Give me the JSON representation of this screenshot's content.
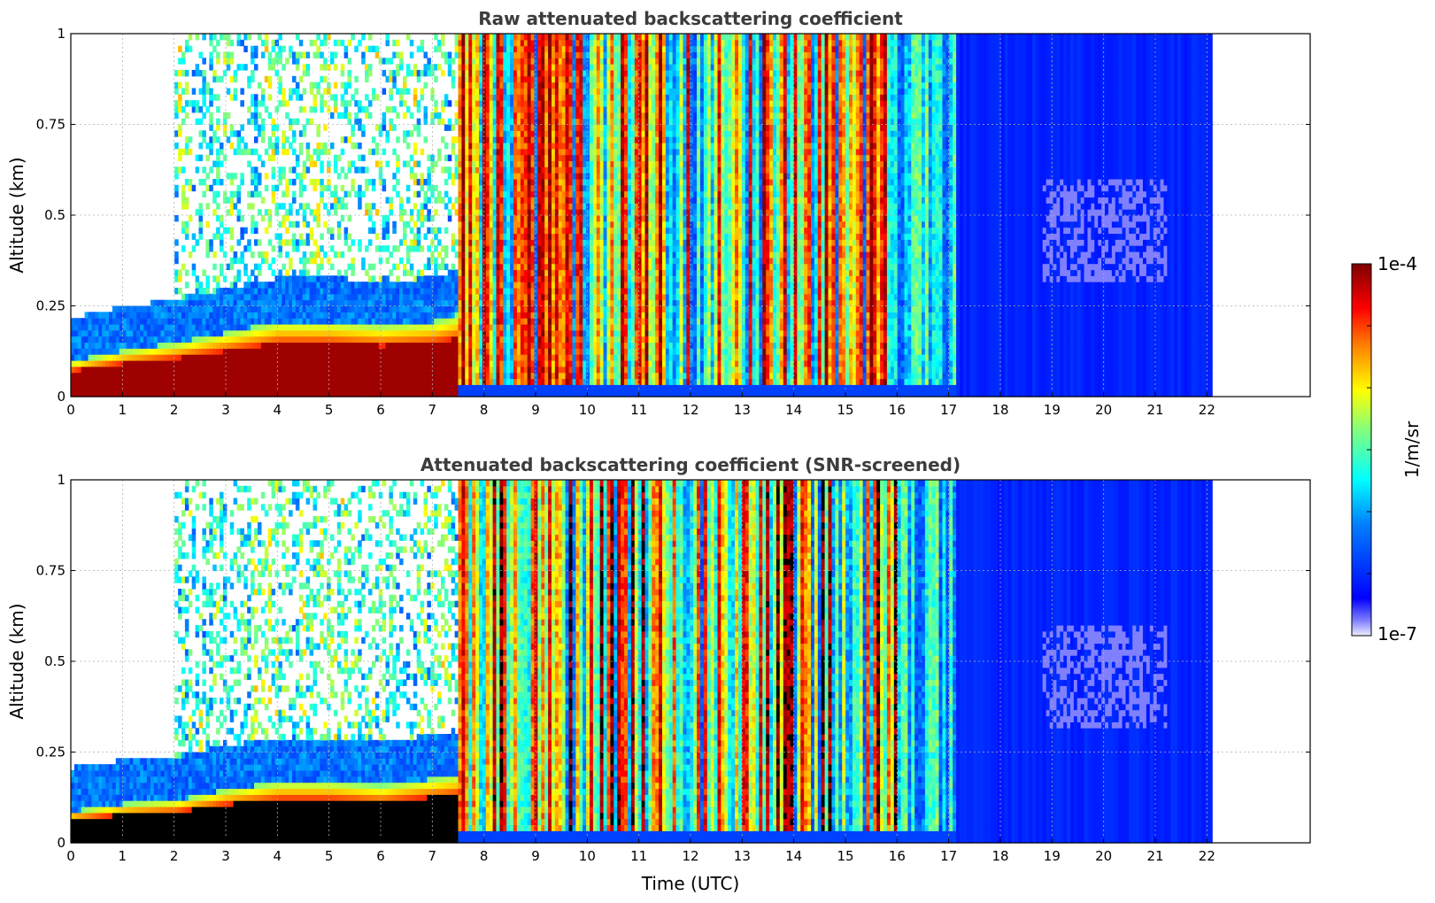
{
  "chart_data": [
    {
      "type": "heatmap",
      "title": "Raw attenuated backscattering coefficient",
      "xlabel": "",
      "ylabel": "Altitude (km)",
      "xlim": [
        0,
        24
      ],
      "ylim": [
        0,
        1
      ],
      "x_ticks": [
        "0",
        "1",
        "2",
        "3",
        "4",
        "5",
        "6",
        "7",
        "8",
        "9",
        "10",
        "11",
        "12",
        "13",
        "14",
        "15",
        "16",
        "17",
        "18",
        "19",
        "20",
        "21",
        "22"
      ],
      "y_ticks": [
        "0",
        "0.25",
        "0.5",
        "0.75",
        "1"
      ],
      "grid": true,
      "data_end_time": 22.1,
      "colorscale": "jet",
      "value_range": [
        "1e-7",
        "1e-4"
      ],
      "features": {
        "surface_layer_top_km": [
          [
            0,
            0.09
          ],
          [
            1,
            0.12
          ],
          [
            2,
            0.14
          ],
          [
            3,
            0.17
          ],
          [
            4,
            0.2
          ],
          [
            5,
            0.2
          ],
          [
            6,
            0.19
          ],
          [
            7,
            0.2
          ],
          [
            7.5,
            0.22
          ]
        ],
        "low_signal_region": {
          "time": [
            16.0,
            22.1
          ],
          "note": "uniform low values"
        }
      }
    },
    {
      "type": "heatmap",
      "title": "Attenuated backscattering coefficient (SNR-screened)",
      "xlabel": "Time (UTC)",
      "ylabel": "Altitude (km)",
      "xlim": [
        0,
        24
      ],
      "ylim": [
        0,
        1
      ],
      "x_ticks": [
        "0",
        "1",
        "2",
        "3",
        "4",
        "5",
        "6",
        "7",
        "8",
        "9",
        "10",
        "11",
        "12",
        "13",
        "14",
        "15",
        "16",
        "17",
        "18",
        "19",
        "20",
        "21",
        "22"
      ],
      "y_ticks": [
        "0",
        "0.25",
        "0.5",
        "0.75",
        "1"
      ],
      "grid": true,
      "data_end_time": 22.1,
      "colorscale": "jet",
      "value_range": [
        "1e-7",
        "1e-4"
      ],
      "features": {
        "saturated_layer_top_km": [
          [
            0,
            0.08
          ],
          [
            1,
            0.1
          ],
          [
            2,
            0.11
          ],
          [
            3,
            0.14
          ],
          [
            4,
            0.16
          ],
          [
            5,
            0.16
          ],
          [
            6,
            0.15
          ],
          [
            7,
            0.17
          ],
          [
            7.5,
            0.18
          ]
        ]
      }
    }
  ],
  "colorbar": {
    "label": "1/m/sr",
    "max_label": "1e-4",
    "min_label": "1e-7",
    "colors": [
      "#eeeeff",
      "#7f7fff",
      "#0000ff",
      "#007fff",
      "#00ffff",
      "#7fff7f",
      "#ffff00",
      "#ff7f00",
      "#ff0000",
      "#7f0000"
    ]
  }
}
